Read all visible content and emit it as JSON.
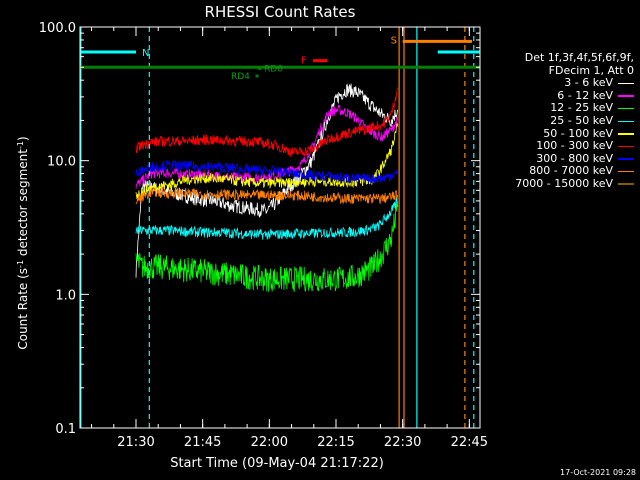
{
  "chart_data": {
    "type": "line",
    "title": "RHESSI Count Rates",
    "xlabel": "Start Time (09-May-04 21:17:22)",
    "ylabel_main": "Count Rate (s",
    "ylabel_sup1": "-1",
    "ylabel_mid": " detector segment",
    "ylabel_sup2": "-1",
    "ylabel_end": ")",
    "x_units": "minutes since 21:17:22",
    "xlim": [
      0,
      90
    ],
    "ylim": [
      0.1,
      100
    ],
    "yscale": "log",
    "x_ticks": [
      {
        "label": "21:30",
        "t": 12.6
      },
      {
        "label": "21:45",
        "t": 27.6
      },
      {
        "label": "22:00",
        "t": 42.6
      },
      {
        "label": "22:15",
        "t": 57.6
      },
      {
        "label": "22:30",
        "t": 72.6
      },
      {
        "label": "22:45",
        "t": 87.6
      }
    ],
    "y_ticks": [
      {
        "label": "0.1",
        "v": 0.1
      },
      {
        "label": "1.0",
        "v": 1.0
      },
      {
        "label": "10.0",
        "v": 10.0
      },
      {
        "label": "100.0",
        "v": 100.0
      }
    ],
    "series": [
      {
        "name": "3 - 6 keV",
        "color": "#ffffff",
        "values": [
          [
            12.6,
            1.5
          ],
          [
            14,
            6.5
          ],
          [
            18,
            6.1
          ],
          [
            22,
            5.6
          ],
          [
            26,
            5.2
          ],
          [
            30,
            5.0
          ],
          [
            34,
            4.6
          ],
          [
            38,
            4.4
          ],
          [
            42,
            4.2
          ],
          [
            44,
            4.8
          ],
          [
            46,
            5.8
          ],
          [
            48,
            6.8
          ],
          [
            50,
            8.0
          ],
          [
            52,
            9.8
          ],
          [
            54,
            14.0
          ],
          [
            56,
            22.0
          ],
          [
            58,
            30.0
          ],
          [
            60,
            34.0
          ],
          [
            62,
            33.0
          ],
          [
            64,
            29.0
          ],
          [
            66,
            25.0
          ],
          [
            68,
            22.0
          ],
          [
            70,
            20.0
          ],
          [
            71.5,
            24.0
          ]
        ]
      },
      {
        "name": "6 - 12 keV",
        "color": "#ff00ff",
        "values": [
          [
            12.6,
            6.5
          ],
          [
            16,
            8.0
          ],
          [
            20,
            8.1
          ],
          [
            24,
            7.9
          ],
          [
            28,
            7.8
          ],
          [
            32,
            7.6
          ],
          [
            36,
            7.5
          ],
          [
            40,
            7.5
          ],
          [
            44,
            7.8
          ],
          [
            48,
            8.5
          ],
          [
            50,
            9.5
          ],
          [
            52,
            12.0
          ],
          [
            54,
            17.0
          ],
          [
            56,
            23.0
          ],
          [
            58,
            24.0
          ],
          [
            60,
            23.0
          ],
          [
            62,
            21.0
          ],
          [
            64,
            18.0
          ],
          [
            66,
            16.0
          ],
          [
            68,
            15.0
          ],
          [
            70,
            17.0
          ],
          [
            71.5,
            20.0
          ]
        ]
      },
      {
        "name": "12 - 25 keV",
        "color": "#00ff00",
        "values": [
          [
            12.6,
            1.8
          ],
          [
            14,
            1.6
          ],
          [
            18,
            1.6
          ],
          [
            22,
            1.55
          ],
          [
            26,
            1.5
          ],
          [
            30,
            1.45
          ],
          [
            34,
            1.4
          ],
          [
            38,
            1.35
          ],
          [
            42,
            1.3
          ],
          [
            46,
            1.3
          ],
          [
            50,
            1.3
          ],
          [
            54,
            1.3
          ],
          [
            58,
            1.3
          ],
          [
            62,
            1.35
          ],
          [
            66,
            1.6
          ],
          [
            68,
            2.0
          ],
          [
            70,
            2.6
          ],
          [
            71.5,
            4.5
          ]
        ]
      },
      {
        "name": "25 - 50 keV",
        "color": "#00ffff",
        "values": [
          [
            12.6,
            3.0
          ],
          [
            16,
            3.0
          ],
          [
            20,
            3.0
          ],
          [
            24,
            2.95
          ],
          [
            28,
            2.9
          ],
          [
            32,
            2.9
          ],
          [
            36,
            2.85
          ],
          [
            40,
            2.8
          ],
          [
            44,
            2.8
          ],
          [
            48,
            2.85
          ],
          [
            52,
            2.85
          ],
          [
            56,
            2.9
          ],
          [
            60,
            2.9
          ],
          [
            64,
            3.0
          ],
          [
            67,
            3.2
          ],
          [
            69,
            3.8
          ],
          [
            71,
            4.6
          ],
          [
            71.5,
            5.5
          ]
        ]
      },
      {
        "name": "50 - 100 keV",
        "color": "#ffff00",
        "values": [
          [
            12.6,
            5.5
          ],
          [
            16,
            6.3
          ],
          [
            20,
            6.6
          ],
          [
            24,
            7.2
          ],
          [
            28,
            7.4
          ],
          [
            32,
            7.3
          ],
          [
            36,
            7.0
          ],
          [
            40,
            6.8
          ],
          [
            44,
            6.8
          ],
          [
            48,
            6.9
          ],
          [
            52,
            7.0
          ],
          [
            56,
            7.0
          ],
          [
            60,
            6.9
          ],
          [
            64,
            7.0
          ],
          [
            66,
            7.2
          ],
          [
            68,
            9.0
          ],
          [
            70,
            12.0
          ],
          [
            71.5,
            18.0
          ]
        ]
      },
      {
        "name": "100 - 300 keV",
        "color": "#ff0000",
        "values": [
          [
            12.6,
            12.5
          ],
          [
            16,
            13.8
          ],
          [
            20,
            14.0
          ],
          [
            24,
            14.0
          ],
          [
            28,
            14.3
          ],
          [
            32,
            14.2
          ],
          [
            36,
            14.0
          ],
          [
            40,
            13.8
          ],
          [
            44,
            13.0
          ],
          [
            48,
            11.5
          ],
          [
            52,
            12.0
          ],
          [
            56,
            14.5
          ],
          [
            60,
            16.0
          ],
          [
            64,
            17.0
          ],
          [
            66,
            18.0
          ],
          [
            68,
            18.5
          ],
          [
            70,
            22.0
          ],
          [
            71.5,
            35.0
          ]
        ]
      },
      {
        "name": "300 - 800 keV",
        "color": "#0000ff",
        "values": [
          [
            12.6,
            8.0
          ],
          [
            16,
            9.0
          ],
          [
            20,
            9.2
          ],
          [
            24,
            9.1
          ],
          [
            28,
            9.0
          ],
          [
            32,
            8.9
          ],
          [
            36,
            8.7
          ],
          [
            40,
            8.5
          ],
          [
            44,
            8.3
          ],
          [
            48,
            8.0
          ],
          [
            52,
            7.8
          ],
          [
            56,
            7.6
          ],
          [
            60,
            7.4
          ],
          [
            64,
            7.3
          ],
          [
            68,
            7.4
          ],
          [
            71.5,
            8.0
          ]
        ]
      },
      {
        "name": "800 - 7000 keV",
        "color": "#ff8000",
        "values": [
          [
            12.6,
            5.0
          ],
          [
            16,
            5.8
          ],
          [
            20,
            5.7
          ],
          [
            24,
            5.7
          ],
          [
            28,
            5.6
          ],
          [
            32,
            5.6
          ],
          [
            36,
            5.5
          ],
          [
            40,
            5.5
          ],
          [
            44,
            5.5
          ],
          [
            48,
            5.5
          ],
          [
            52,
            5.4
          ],
          [
            56,
            5.3
          ],
          [
            60,
            5.2
          ],
          [
            64,
            5.2
          ],
          [
            68,
            5.2
          ],
          [
            71.5,
            5.5
          ]
        ]
      },
      {
        "name": "7000 - 15000 keV",
        "color": "#806000",
        "values": []
      }
    ],
    "legend": {
      "position": "right",
      "header_line1": "Det 1f,3f,4f,5f,6f,9f,",
      "header_line2": "FDecim 1, Att 0"
    },
    "markers": {
      "n_label": "N",
      "n_segments": [
        [
          0,
          12.6
        ],
        [
          80.5,
          90
        ]
      ],
      "n_level": 65,
      "s_label": "S",
      "s_segments": [
        [
          72.6,
          88.2
        ]
      ],
      "s_level": 78,
      "f_label": "F",
      "f_segment": [
        52.4,
        55.6
      ],
      "f_level": 56,
      "rd0_label": "RD0",
      "rd0_value": 49,
      "rd4_label": "RD4",
      "rd4_value": 43,
      "marker_t": 39.6,
      "green_level": 50
    },
    "vertical_lines": [
      {
        "t": 0.2,
        "color": "#00ffff",
        "style": "solid"
      },
      {
        "t": 15.6,
        "color": "#00ffff",
        "style": "dashed"
      },
      {
        "t": 71.8,
        "color": "#ff8000",
        "style": "solid"
      },
      {
        "t": 72.9,
        "color": "#ff8000",
        "style": "solid"
      },
      {
        "t": 75.8,
        "color": "#00ffff",
        "style": "solid"
      },
      {
        "t": 86.6,
        "color": "#ff8000",
        "style": "dashed"
      },
      {
        "t": 88.6,
        "color": "#00ffff",
        "style": "dashed"
      }
    ]
  },
  "stamp": "17-Oct-2021 09:28"
}
